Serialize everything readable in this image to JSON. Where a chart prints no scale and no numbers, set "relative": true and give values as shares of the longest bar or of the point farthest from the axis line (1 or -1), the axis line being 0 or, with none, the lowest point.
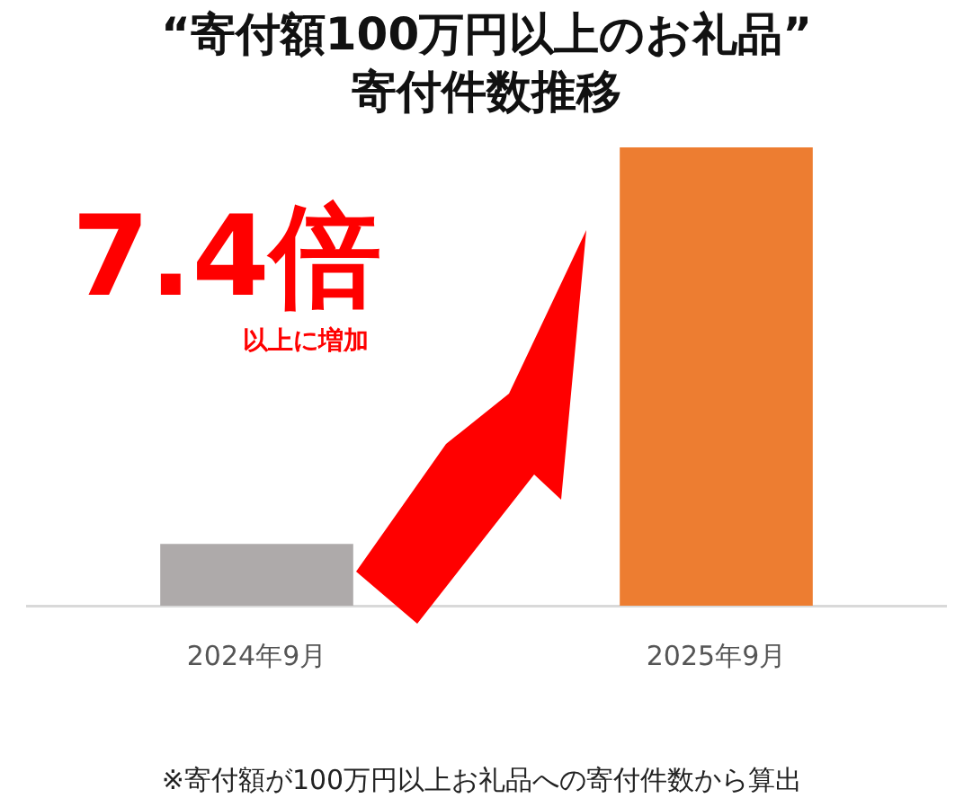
{
  "chart_data": {
    "type": "bar",
    "title": "“寄付額100万円以上のお礼品”",
    "subtitle": "寄付件数推移",
    "categories": [
      "2024年9月",
      "2025年9月"
    ],
    "values": [
      0.135,
      1
    ],
    "colors": [
      "#aeaaaa",
      "#ed7d31"
    ],
    "relative": true,
    "grid": false,
    "legend": false,
    "annotations": [
      "7.4倍",
      "以上に増加",
      "※寄付額が100万円以上お礼品への寄付件数から算出"
    ]
  }
}
